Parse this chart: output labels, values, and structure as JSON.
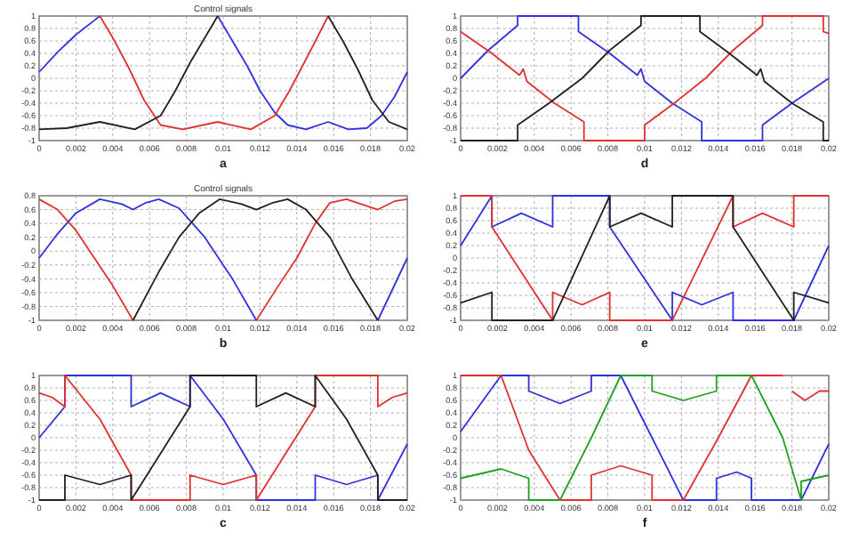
{
  "chart_data": [
    {
      "type": "line",
      "title": "Control signals",
      "annotations": [
        "a"
      ],
      "xlim": [
        0,
        0.02
      ],
      "xticks": [
        0,
        0.002,
        0.004,
        0.006,
        0.008,
        0.01,
        0.012,
        0.014,
        0.016,
        0.018,
        0.02
      ],
      "ylim": [
        -1,
        1
      ],
      "yticks": [
        -1,
        -0.8,
        -0.6,
        -0.4,
        -0.2,
        0,
        0.2,
        0.4,
        0.6,
        0.8,
        1
      ],
      "grid": true,
      "series": [
        {
          "color": "#3030e0",
          "x": [
            0,
            0.001,
            0.002,
            0.003,
            0.0033,
            0.0034,
            0.0097,
            0.0105,
            0.0113,
            0.012,
            0.0128,
            0.0135,
            0.0145,
            0.0157,
            0.0168,
            0.0178,
            0.0186,
            0.0193,
            0.02
          ],
          "values": [
            0.1,
            0.42,
            0.7,
            0.93,
            1,
            null,
            1,
            0.6,
            0.2,
            -0.2,
            -0.55,
            -0.75,
            -0.82,
            -0.7,
            -0.82,
            -0.8,
            -0.6,
            -0.3,
            0.1
          ]
        },
        {
          "color": "#e03030",
          "x": [
            0.0033,
            0.0041,
            0.0049,
            0.0057,
            0.0066,
            0.0078,
            0.0097,
            0.0115,
            0.0128,
            0.0136,
            0.0144,
            0.0151,
            0.0157
          ],
          "values": [
            1,
            0.6,
            0.15,
            -0.35,
            -0.75,
            -0.82,
            -0.7,
            -0.82,
            -0.6,
            -0.2,
            0.25,
            0.65,
            1
          ]
        },
        {
          "color": "#202020",
          "x": [
            0,
            0.0015,
            0.0033,
            0.0052,
            0.0066,
            0.0074,
            0.0082,
            0.009,
            0.0097,
            0.0098,
            0.0157,
            0.0165,
            0.0173,
            0.0181,
            0.019,
            0.02
          ],
          "values": [
            -0.82,
            -0.8,
            -0.7,
            -0.82,
            -0.6,
            -0.2,
            0.25,
            0.65,
            1,
            null,
            1,
            0.6,
            0.15,
            -0.35,
            -0.7,
            -0.82
          ]
        }
      ]
    },
    {
      "type": "line",
      "annotations": [
        "d"
      ],
      "xlim": [
        0,
        0.02
      ],
      "xticks": [
        0,
        0.002,
        0.004,
        0.006,
        0.008,
        0.01,
        0.012,
        0.014,
        0.016,
        0.018,
        0.02
      ],
      "ylim": [
        -1,
        1
      ],
      "yticks": [
        -1,
        -0.8,
        -0.6,
        -0.4,
        -0.2,
        0,
        0.2,
        0.4,
        0.6,
        0.8,
        1
      ],
      "grid": true,
      "series": [
        {
          "color": "#3030e0",
          "x": [
            0,
            0.0015,
            0.0031,
            0.0031,
            0.0064,
            0.0064,
            0.0081,
            0.0096,
            0.0098,
            0.01,
            0.0115,
            0.0131,
            0.0131,
            0.0164,
            0.0164,
            0.018,
            0.02
          ],
          "values": [
            0,
            0.45,
            0.85,
            1,
            1,
            0.75,
            0.4,
            0.05,
            0.15,
            -0.05,
            -0.4,
            -0.7,
            -1,
            -1,
            -0.75,
            -0.4,
            0
          ]
        },
        {
          "color": "#e03030",
          "x": [
            0,
            0.0017,
            0.0032,
            0.0034,
            0.0036,
            0.0051,
            0.0067,
            0.0067,
            0.01,
            0.01,
            0.0116,
            0.0133,
            0.0148,
            0.0164,
            0.0164,
            0.0197,
            0.0197,
            0.02
          ],
          "values": [
            0.75,
            0.4,
            0.05,
            0.15,
            -0.05,
            -0.4,
            -0.7,
            -1,
            -1,
            -0.75,
            -0.4,
            0,
            0.45,
            0.85,
            1,
            1,
            0.75,
            0.72
          ]
        },
        {
          "color": "#202020",
          "x": [
            0,
            0.0031,
            0.0031,
            0.0048,
            0.0066,
            0.0081,
            0.0098,
            0.0098,
            0.013,
            0.013,
            0.0146,
            0.0161,
            0.0163,
            0.0165,
            0.018,
            0.0197,
            0.0197,
            0.02
          ],
          "values": [
            -1,
            -1,
            -0.75,
            -0.4,
            0,
            0.45,
            0.85,
            1,
            1,
            0.75,
            0.4,
            0.05,
            0.15,
            -0.05,
            -0.4,
            -0.7,
            -1,
            -1
          ]
        }
      ]
    },
    {
      "type": "line",
      "title": "Control signals",
      "annotations": [
        "b"
      ],
      "xlim": [
        0,
        0.02
      ],
      "xticks": [
        0,
        0.002,
        0.004,
        0.006,
        0.008,
        0.01,
        0.012,
        0.014,
        0.016,
        0.018,
        0.02
      ],
      "ylim": [
        -1,
        0.8
      ],
      "yticks": [
        -1,
        -0.8,
        -0.6,
        -0.4,
        -0.2,
        0,
        0.2,
        0.4,
        0.6,
        0.8
      ],
      "grid": true,
      "series": [
        {
          "color": "#3030e0",
          "x": [
            0,
            0.001,
            0.002,
            0.0033,
            0.0045,
            0.0051,
            0.0058,
            0.0065,
            0.0076,
            0.009,
            0.0105,
            0.0118,
            0.0119,
            0.0184,
            0.0192,
            0.02
          ],
          "values": [
            -0.1,
            0.25,
            0.55,
            0.75,
            0.68,
            0.6,
            0.7,
            0.75,
            0.62,
            0.2,
            -0.4,
            -1,
            null,
            -1,
            -0.55,
            -0.1
          ]
        },
        {
          "color": "#e03030",
          "x": [
            0,
            0.001,
            0.002,
            0.003,
            0.004,
            0.0051,
            0.0052,
            0.0118,
            0.013,
            0.014,
            0.015,
            0.0158,
            0.0167,
            0.0184,
            0.0193,
            0.02
          ],
          "values": [
            0.75,
            0.6,
            0.3,
            -0.1,
            -0.5,
            -1,
            null,
            -1,
            -0.5,
            -0.1,
            0.4,
            0.7,
            0.75,
            0.6,
            0.72,
            0.75
          ]
        },
        {
          "color": "#202020",
          "x": [
            0.0051,
            0.0065,
            0.0076,
            0.0087,
            0.0098,
            0.011,
            0.0118,
            0.0127,
            0.0135,
            0.0145,
            0.0158,
            0.017,
            0.0184
          ],
          "values": [
            -1,
            -0.3,
            0.2,
            0.55,
            0.75,
            0.68,
            0.6,
            0.7,
            0.75,
            0.6,
            0.2,
            -0.4,
            -1
          ]
        }
      ]
    },
    {
      "type": "line",
      "annotations": [
        "e"
      ],
      "xlim": [
        0,
        0.02
      ],
      "xticks": [
        0,
        0.002,
        0.004,
        0.006,
        0.008,
        0.01,
        0.012,
        0.014,
        0.016,
        0.018,
        0.02
      ],
      "ylim": [
        -1,
        1
      ],
      "yticks": [
        -1,
        -0.8,
        -0.6,
        -0.4,
        -0.2,
        0,
        0.2,
        0.4,
        0.6,
        0.8,
        1
      ],
      "grid": true,
      "series": [
        {
          "color": "#3030e0",
          "x": [
            0,
            0.0017,
            0.0017,
            0.0033,
            0.005,
            0.005,
            0.0081,
            0.0081,
            0.0115,
            0.0115,
            0.0131,
            0.0148,
            0.0148,
            0.0181,
            0.02
          ],
          "values": [
            0.2,
            1,
            0.5,
            0.72,
            0.5,
            1,
            1,
            0.5,
            -1,
            -0.55,
            -0.75,
            -0.55,
            -1,
            -1,
            0.2
          ]
        },
        {
          "color": "#e03030",
          "x": [
            0,
            0.0017,
            0.0017,
            0.005,
            0.005,
            0.0066,
            0.0081,
            0.0081,
            0.0115,
            0.0148,
            0.0148,
            0.0164,
            0.0181,
            0.0181,
            0.02
          ],
          "values": [
            1,
            1,
            0.5,
            -1,
            -0.55,
            -0.75,
            -0.55,
            -1,
            -1,
            1,
            0.5,
            0.72,
            0.5,
            1,
            1
          ]
        },
        {
          "color": "#202020",
          "x": [
            0,
            0.0017,
            0.0017,
            0.005,
            0.0081,
            0.0081,
            0.0098,
            0.0115,
            0.0115,
            0.0148,
            0.0148,
            0.0181,
            0.0181,
            0.02
          ],
          "values": [
            -0.72,
            -0.55,
            -1,
            -1,
            1,
            0.5,
            0.72,
            0.5,
            1,
            1,
            0.5,
            -1,
            -0.55,
            -0.72
          ]
        }
      ]
    },
    {
      "type": "line",
      "annotations": [
        "c"
      ],
      "xlim": [
        0,
        0.02
      ],
      "xticks": [
        0,
        0.002,
        0.004,
        0.006,
        0.008,
        0.01,
        0.012,
        0.014,
        0.016,
        0.018,
        0.02
      ],
      "ylim": [
        -1,
        1
      ],
      "yticks": [
        -1,
        -0.8,
        -0.6,
        -0.4,
        -0.2,
        0,
        0.2,
        0.4,
        0.6,
        0.8,
        1
      ],
      "grid": true,
      "series": [
        {
          "color": "#3030e0",
          "x": [
            0,
            0.0014,
            0.0014,
            0.005,
            0.005,
            0.0066,
            0.0082,
            0.0082,
            0.01,
            0.0118,
            0.0118,
            0.015,
            0.015,
            0.0167,
            0.0184,
            0.0184,
            0.02
          ],
          "values": [
            0,
            0.5,
            1,
            1,
            0.5,
            0.72,
            0.5,
            1,
            0.3,
            -0.6,
            -1,
            -1,
            -0.6,
            -0.75,
            -0.6,
            -1,
            -0.1
          ]
        },
        {
          "color": "#e03030",
          "x": [
            0,
            0.0007,
            0.0014,
            0.0014,
            0.0033,
            0.005,
            0.005,
            0.0082,
            0.0082,
            0.01,
            0.0118,
            0.0118,
            0.0134,
            0.015,
            0.015,
            0.0184,
            0.0184,
            0.0192,
            0.02
          ],
          "values": [
            0.72,
            0.65,
            0.5,
            1,
            0.3,
            -0.6,
            -1,
            -1,
            -0.6,
            -0.75,
            -0.6,
            -1,
            -0.25,
            0.5,
            1,
            1,
            0.5,
            0.65,
            0.72
          ]
        },
        {
          "color": "#202020",
          "x": [
            0,
            0.0014,
            0.0014,
            0.0033,
            0.005,
            0.005,
            0.0066,
            0.0082,
            0.0082,
            0.0118,
            0.0118,
            0.0134,
            0.015,
            0.015,
            0.0167,
            0.0184,
            0.0184,
            0.02
          ],
          "values": [
            -1,
            -1,
            -0.6,
            -0.75,
            -0.6,
            -1,
            -0.25,
            0.5,
            1,
            1,
            0.5,
            0.72,
            0.5,
            1,
            0.3,
            -0.6,
            -1,
            -1
          ]
        }
      ]
    },
    {
      "type": "line",
      "annotations": [
        "f"
      ],
      "xlim": [
        0,
        0.02
      ],
      "xticks": [
        0,
        0.002,
        0.004,
        0.006,
        0.008,
        0.01,
        0.012,
        0.014,
        0.016,
        0.018,
        0.02
      ],
      "ylim": [
        -1,
        1
      ],
      "yticks": [
        -1,
        -0.8,
        -0.6,
        -0.4,
        -0.2,
        0,
        0.2,
        0.4,
        0.6,
        0.8,
        1
      ],
      "grid": true,
      "series": [
        {
          "color": "#3030e0",
          "x": [
            0,
            0.0011,
            0.0022,
            0.0037,
            0.0037,
            0.0054,
            0.0071,
            0.0071,
            0.0087,
            0.0104,
            0.0121,
            0.0139,
            0.0139,
            0.015,
            0.0158,
            0.0158,
            0.0185,
            0.02
          ],
          "values": [
            0.1,
            0.55,
            1,
            1,
            0.75,
            0.55,
            0.75,
            1,
            1,
            0,
            -1,
            -1,
            -0.65,
            -0.55,
            -0.65,
            -1,
            -1,
            -0.1
          ]
        },
        {
          "color": "#e03030",
          "x": [
            0,
            0.0022,
            0.0037,
            0.0054,
            0.0071,
            0.0071,
            0.0087,
            0.0104,
            0.0104,
            0.0121,
            0.014,
            0.0158,
            0.0175,
            0.0176,
            0.018,
            0.0187,
            0.0195,
            0.02
          ],
          "values": [
            1,
            1,
            -0.2,
            -1,
            -1,
            -0.6,
            -0.45,
            -0.6,
            -1,
            -1,
            0,
            1,
            1,
            null,
            0.75,
            0.6,
            0.75,
            0.75
          ]
        },
        {
          "color": "#20a020",
          "x": [
            0,
            0.0022,
            0.0037,
            0.0037,
            0.0054,
            0.0071,
            0.0087,
            0.0104,
            0.0104,
            0.0121,
            0.0139,
            0.0139,
            0.0158,
            0.0175,
            0.0185,
            0.0185,
            0.02
          ],
          "values": [
            -0.65,
            -0.5,
            -0.65,
            -1,
            -1,
            0,
            1,
            1,
            0.75,
            0.6,
            0.75,
            1,
            1,
            0,
            -1,
            -0.7,
            -0.6
          ]
        }
      ]
    }
  ]
}
